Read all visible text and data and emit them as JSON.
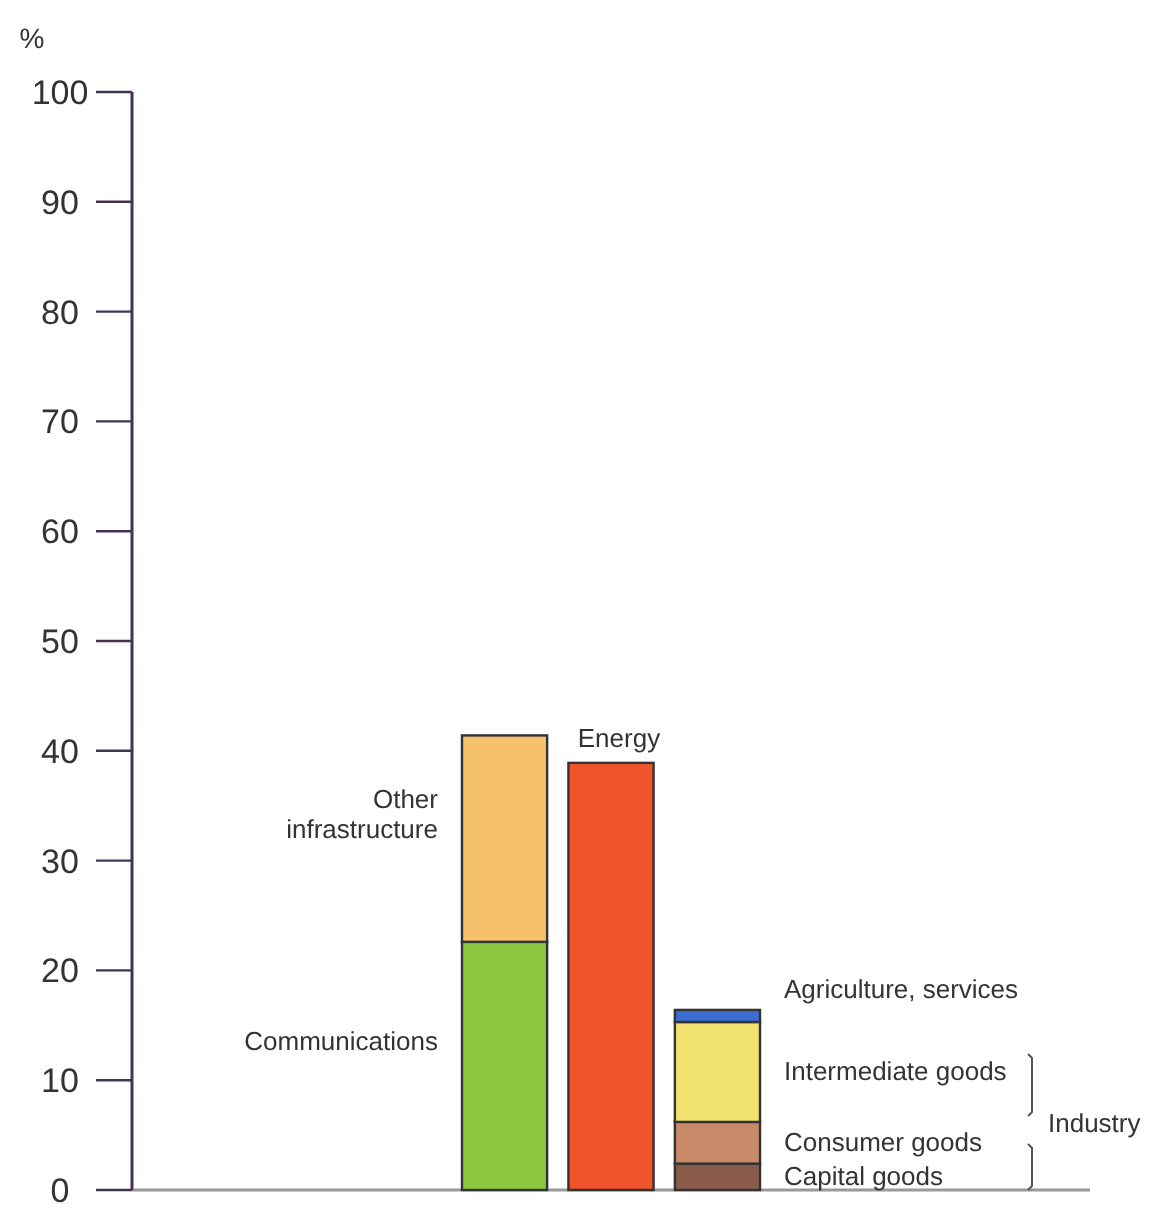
{
  "chart_data": {
    "type": "bar",
    "stacked": true,
    "ylabel": "%",
    "categories": [
      null,
      null,
      null,
      null,
      null,
      null,
      null,
      null,
      null
    ],
    "ylim": [
      0,
      100
    ],
    "yticks": [
      0,
      10,
      20,
      30,
      40,
      50,
      60,
      70,
      80,
      90,
      100
    ],
    "grid": false,
    "series": [
      {
        "name": "Communications",
        "color": "#8cc63f",
        "values": [
          null,
          null,
          null,
          22.6,
          null,
          null,
          null,
          null,
          null
        ]
      },
      {
        "name": "Other infrastructure",
        "color": "#f5c26b",
        "values": [
          null,
          null,
          null,
          18.8,
          null,
          null,
          null,
          null,
          null
        ]
      },
      {
        "name": "Energy",
        "color": "#f0542a",
        "values": [
          null,
          null,
          null,
          null,
          38.9,
          null,
          null,
          null,
          null
        ]
      },
      {
        "name": "Capital goods",
        "color": "#8a5a4a",
        "values": [
          null,
          null,
          null,
          null,
          null,
          2.4,
          null,
          null,
          null
        ]
      },
      {
        "name": "Consumer goods",
        "color": "#c98a6a",
        "values": [
          null,
          null,
          null,
          null,
          null,
          3.8,
          null,
          null,
          null
        ]
      },
      {
        "name": "Intermediate goods",
        "color": "#f2e270",
        "values": [
          null,
          null,
          null,
          null,
          null,
          9.1,
          null,
          null,
          null
        ]
      },
      {
        "name": "Agriculture, services",
        "color": "#3a6fd0",
        "values": [
          null,
          null,
          null,
          null,
          null,
          1.1,
          null,
          null,
          null
        ]
      }
    ],
    "annotations": [
      "Industry"
    ]
  }
}
